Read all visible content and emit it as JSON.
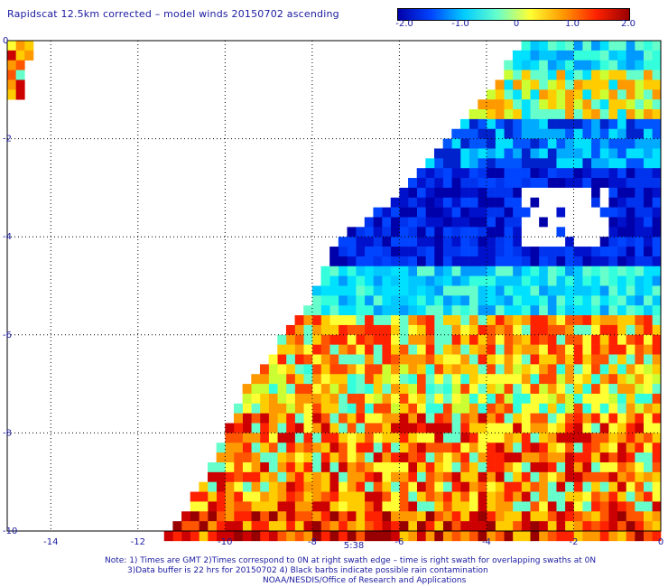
{
  "chart_data": {
    "type": "heatmap",
    "title": "Rapidscat 12.5km corrected – model winds 20150702 ascending",
    "xlim": [
      -15,
      0
    ],
    "ylim": [
      -10,
      0
    ],
    "x_ticks": [
      "-14",
      "-12",
      "-10",
      "-8",
      "-6",
      "-4",
      "-2",
      "0"
    ],
    "y_ticks": [
      "0",
      "-2",
      "-4",
      "-6",
      "-8",
      "-10"
    ],
    "colorbar": {
      "range": [
        -2.0,
        2.0
      ],
      "labels": [
        "-2.0",
        "-1.0",
        "0",
        "1.0",
        "2.0"
      ],
      "colormap": [
        "#0000aa",
        "#0044ff",
        "#00ccff",
        "#66ffcc",
        "#ffff33",
        "#ff9900",
        "#ff2200",
        "#990000"
      ]
    },
    "time_label": "5:38",
    "swath_rows": [
      {
        "lat": 0.0,
        "lon_west": -3.35,
        "band": "cyan"
      },
      {
        "lat": -1.0,
        "lon_west": -4.0,
        "band": "cyan-orange"
      },
      {
        "lat": -2.0,
        "lon_west": -5.0,
        "band": "blue-cyan"
      },
      {
        "lat": -3.0,
        "lon_west": -6.0,
        "band": "blue"
      },
      {
        "lat": -4.0,
        "lon_west": -7.5,
        "band": "blue"
      },
      {
        "lat": -5.0,
        "lon_west": -8.0,
        "band": "cyan"
      },
      {
        "lat": -6.0,
        "lon_west": -8.8,
        "band": "yellow-red"
      },
      {
        "lat": -7.0,
        "lon_west": -9.7,
        "band": "yellow-orange"
      },
      {
        "lat": -8.0,
        "lon_west": -10.1,
        "band": "orange-red"
      },
      {
        "lat": -9.0,
        "lon_west": -10.7,
        "band": "orange-red"
      },
      {
        "lat": -10.0,
        "lon_west": -11.4,
        "band": "red"
      }
    ],
    "corner_patch": {
      "lat": [
        0,
        -1
      ],
      "lon": [
        -15,
        -14.5
      ],
      "band": "orange-red"
    }
  },
  "notes": {
    "line1": "Note: 1) Times are GMT 2)Times correspond to 0N at right swath edge – time is right swath for overlapping swaths at 0N",
    "line2": "3)Data buffer is 22 hrs for 20150702 4) Black barbs indicate possible rain contamination",
    "line3": "NOAA/NESDIS/Office of Research and Applications"
  }
}
